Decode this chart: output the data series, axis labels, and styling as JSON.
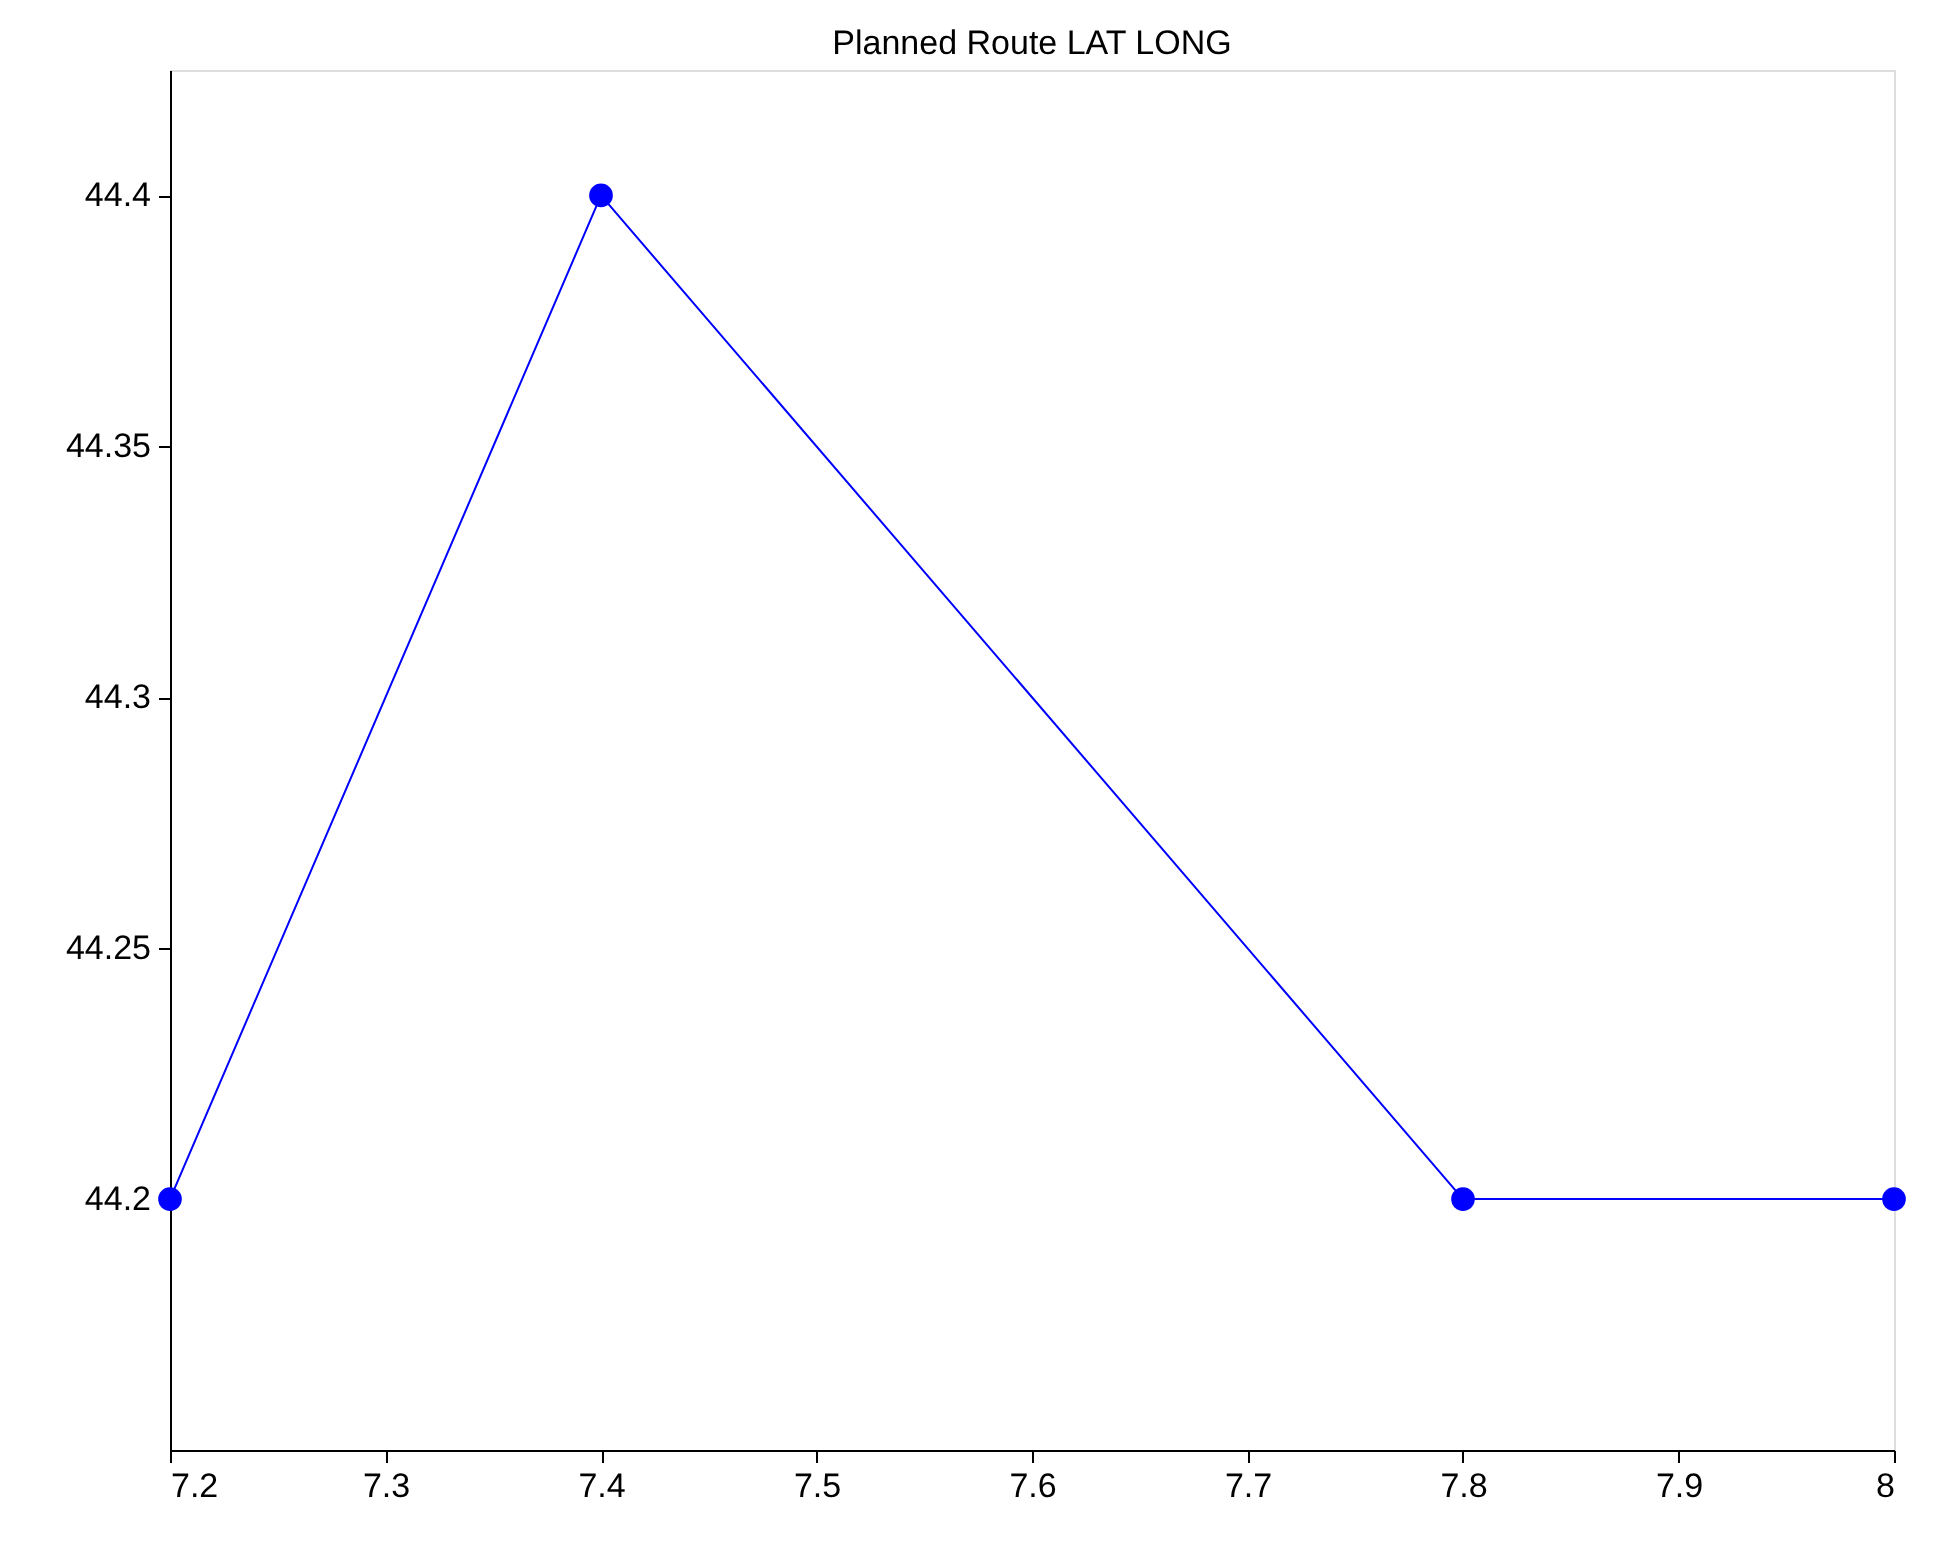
{
  "chart_data": {
    "type": "line",
    "title": "Planned Route LAT LONG",
    "x": [
      7.2,
      7.4,
      7.8,
      8
    ],
    "series": [
      {
        "color": "#0000ff",
        "values": [
          44.2,
          44.4,
          44.2,
          44.2
        ]
      }
    ],
    "xlim": [
      7.2,
      8
    ],
    "xticks": [
      7.2,
      7.3,
      7.4,
      7.5,
      7.6,
      7.7,
      7.8,
      7.9,
      8
    ],
    "ylim": [
      44.15,
      44.425
    ],
    "yticks": [
      44.2,
      44.25,
      44.3,
      44.35,
      44.4
    ],
    "marker": "circle",
    "line_style": "solid",
    "grid": false,
    "legend": false
  }
}
